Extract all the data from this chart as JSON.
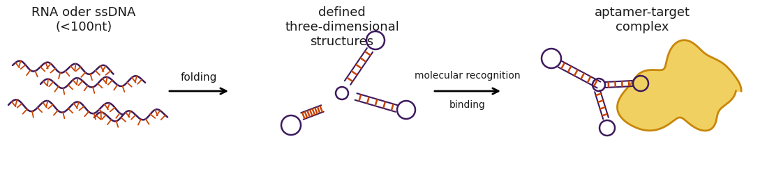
{
  "bg_color": "#ffffff",
  "text_color": "#1a1a1a",
  "strand_purple": "#3d1a5e",
  "strand_orange": "#cc4400",
  "label1": "RNA oder ssDNA\n(<100nt)",
  "label2": "defined\nthree-dimensional\nstructures",
  "label3": "aptamer-target\ncomplex",
  "arrow1_label_top": "folding",
  "arrow2_label_top": "molecular recognition",
  "arrow2_label_bot": "binding",
  "font_size_labels": 13,
  "font_size_arrows": 11,
  "target_blob_color": "#f0d060",
  "target_blob_edge": "#c8860a"
}
